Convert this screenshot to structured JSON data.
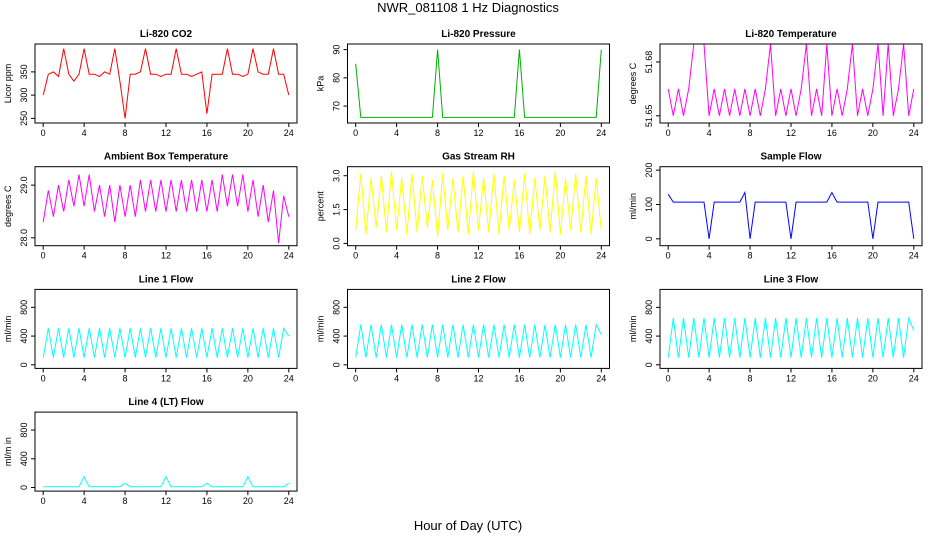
{
  "title": "NWR_081108  1 Hz Diagnostics",
  "xlabel": "Hour of Day (UTC)",
  "chart_data": [
    {
      "type": "line",
      "title": "Li-820 CO2",
      "ylabel": "Licor ppm",
      "xlim": [
        -0.8,
        24.8
      ],
      "xticks": [
        0,
        4,
        8,
        12,
        16,
        20,
        24
      ],
      "ylim": [
        240,
        410
      ],
      "yticks": [
        250,
        300,
        350
      ],
      "color": "#ff0000",
      "x": [
        0,
        0.5,
        1,
        1.5,
        2,
        2.5,
        3,
        3.5,
        4,
        4.5,
        5,
        5.5,
        6,
        6.5,
        7,
        7.5,
        8,
        8.5,
        9,
        9.5,
        10,
        10.5,
        11,
        11.5,
        12,
        12.5,
        13,
        13.5,
        14,
        14.5,
        15,
        15.5,
        16,
        16.5,
        17,
        17.5,
        18,
        18.5,
        19,
        19.5,
        20,
        20.5,
        21,
        21.5,
        22,
        22.5,
        23,
        23.5,
        24
      ],
      "values": [
        300,
        345,
        350,
        340,
        400,
        345,
        330,
        345,
        400,
        345,
        345,
        340,
        350,
        345,
        400,
        330,
        250,
        345,
        345,
        350,
        400,
        345,
        345,
        340,
        345,
        345,
        400,
        345,
        345,
        340,
        345,
        350,
        260,
        345,
        345,
        345,
        400,
        345,
        345,
        340,
        345,
        400,
        350,
        345,
        345,
        400,
        345,
        345,
        300
      ]
    },
    {
      "type": "line",
      "title": "Li-820 Pressure",
      "ylabel": "kPa",
      "xlim": [
        -0.8,
        24.8
      ],
      "xticks": [
        0,
        4,
        8,
        12,
        16,
        20,
        24
      ],
      "ylim": [
        64,
        92
      ],
      "yticks": [
        70,
        80,
        90
      ],
      "color": "#00b000",
      "x": [
        0,
        0.5,
        1,
        1.5,
        2,
        2.5,
        3,
        3.5,
        4,
        4.5,
        5,
        5.5,
        6,
        6.5,
        7,
        7.5,
        8,
        8.5,
        9,
        9.5,
        10,
        10.5,
        11,
        11.5,
        12,
        12.5,
        13,
        13.5,
        14,
        14.5,
        15,
        15.5,
        16,
        16.5,
        17,
        17.5,
        18,
        18.5,
        19,
        19.5,
        20,
        20.5,
        21,
        21.5,
        22,
        22.5,
        23,
        23.5,
        24
      ],
      "values": [
        85,
        66,
        66,
        66,
        66,
        66,
        66,
        66,
        66,
        66,
        66,
        66,
        66,
        66,
        66,
        66,
        90,
        66,
        66,
        66,
        66,
        66,
        66,
        66,
        66,
        66,
        66,
        66,
        66,
        66,
        66,
        66,
        90,
        66,
        66,
        66,
        66,
        66,
        66,
        66,
        66,
        66,
        66,
        66,
        66,
        66,
        66,
        66,
        90
      ]
    },
    {
      "type": "line",
      "title": "Li-820 Temperature",
      "ylabel": "degrees C",
      "xlim": [
        -0.8,
        24.8
      ],
      "xticks": [
        0,
        4,
        8,
        12,
        16,
        20,
        24
      ],
      "ylim": [
        51.646,
        51.69
      ],
      "yticks": [
        51.65,
        51.68
      ],
      "color": "#ff00ff",
      "x": [
        0,
        0.5,
        1,
        1.5,
        2,
        2.5,
        3,
        3.5,
        4,
        4.5,
        5,
        5.5,
        6,
        6.5,
        7,
        7.5,
        8,
        8.5,
        9,
        9.5,
        10,
        10.5,
        11,
        11.5,
        12,
        12.5,
        13,
        13.5,
        14,
        14.5,
        15,
        15.5,
        16,
        16.5,
        17,
        17.5,
        18,
        18.5,
        19,
        19.5,
        20,
        20.5,
        21,
        21.5,
        22,
        22.5,
        23,
        23.5,
        24
      ],
      "values": [
        51.665,
        51.65,
        51.665,
        51.65,
        51.665,
        51.69,
        51.69,
        51.69,
        51.65,
        51.665,
        51.65,
        51.665,
        51.65,
        51.665,
        51.65,
        51.665,
        51.65,
        51.665,
        51.65,
        51.665,
        51.69,
        51.65,
        51.665,
        51.65,
        51.665,
        51.65,
        51.665,
        51.69,
        51.65,
        51.665,
        51.65,
        51.69,
        51.65,
        51.665,
        51.65,
        51.665,
        51.69,
        51.65,
        51.665,
        51.65,
        51.665,
        51.69,
        51.65,
        51.69,
        51.65,
        51.665,
        51.69,
        51.65,
        51.665
      ]
    },
    {
      "type": "line",
      "title": "Ambient Box Temperature",
      "ylabel": "degrees C",
      "xlim": [
        -0.8,
        24.8
      ],
      "xticks": [
        0,
        4,
        8,
        12,
        16,
        20,
        24
      ],
      "ylim": [
        27.85,
        29.35
      ],
      "yticks": [
        {
          "value": 28,
          "label": "28.0"
        },
        {
          "value": 29,
          "label": "29.0"
        }
      ],
      "color": "#ff00ff",
      "x": [
        0,
        0.5,
        1,
        1.5,
        2,
        2.5,
        3,
        3.5,
        4,
        4.5,
        5,
        5.5,
        6,
        6.5,
        7,
        7.5,
        8,
        8.5,
        9,
        9.5,
        10,
        10.5,
        11,
        11.5,
        12,
        12.5,
        13,
        13.5,
        14,
        14.5,
        15,
        15.5,
        16,
        16.5,
        17,
        17.5,
        18,
        18.5,
        19,
        19.5,
        20,
        20.5,
        21,
        21.5,
        22,
        22.5,
        23,
        23.5,
        24
      ],
      "values": [
        28.3,
        28.9,
        28.4,
        29.0,
        28.5,
        29.1,
        28.6,
        29.2,
        28.6,
        29.2,
        28.5,
        29.0,
        28.4,
        29.0,
        28.3,
        29.0,
        28.4,
        29.0,
        28.4,
        29.1,
        28.5,
        29.1,
        28.5,
        29.1,
        28.5,
        29.1,
        28.5,
        29.1,
        28.5,
        29.1,
        28.5,
        29.1,
        28.5,
        29.1,
        28.5,
        29.2,
        28.6,
        29.2,
        28.6,
        29.2,
        28.5,
        29.1,
        28.4,
        29.0,
        28.3,
        28.9,
        27.9,
        28.8,
        28.4
      ]
    },
    {
      "type": "line",
      "title": "Gas Stream RH",
      "ylabel": "percent",
      "xlim": [
        -0.8,
        24.8
      ],
      "xticks": [
        0,
        4,
        8,
        12,
        16,
        20,
        24
      ],
      "ylim": [
        -0.1,
        3.4
      ],
      "yticks": [
        {
          "value": 0,
          "label": "0.0"
        },
        1.5,
        {
          "value": 3,
          "label": "3.0"
        }
      ],
      "color": "#ffff00",
      "x": [
        0,
        0.5,
        1,
        1.5,
        2,
        2.5,
        3,
        3.5,
        4,
        4.5,
        5,
        5.5,
        6,
        6.5,
        7,
        7.5,
        8,
        8.5,
        9,
        9.5,
        10,
        10.5,
        11,
        11.5,
        12,
        12.5,
        13,
        13.5,
        14,
        14.5,
        15,
        15.5,
        16,
        16.5,
        17,
        17.5,
        18,
        18.5,
        19,
        19.5,
        20,
        20.5,
        21,
        21.5,
        22,
        22.5,
        23,
        23.5,
        24
      ],
      "values": [
        0.6,
        3.1,
        0.4,
        2.9,
        0.7,
        3.0,
        0.5,
        3.2,
        0.6,
        2.9,
        0.4,
        3.1,
        0.5,
        3.0,
        0.7,
        2.8,
        0.3,
        3.1,
        0.6,
        2.9,
        0.5,
        3.0,
        0.4,
        3.2,
        0.6,
        2.9,
        0.5,
        3.1,
        0.4,
        3.0,
        0.6,
        2.8,
        0.5,
        3.1,
        0.4,
        2.9,
        0.6,
        3.0,
        0.5,
        3.2,
        0.4,
        2.9,
        0.6,
        3.1,
        0.5,
        3.0,
        0.4,
        2.9,
        0.6
      ]
    },
    {
      "type": "line",
      "title": "Sample Flow",
      "ylabel": "ml/min",
      "xlim": [
        -0.8,
        24.8
      ],
      "xticks": [
        0,
        4,
        8,
        12,
        16,
        20,
        24
      ],
      "ylim": [
        -20,
        210
      ],
      "yticks": [
        0,
        100,
        200
      ],
      "color": "#0000ff",
      "x": [
        0,
        0.5,
        1,
        1.5,
        2,
        2.5,
        3,
        3.5,
        4,
        4.5,
        5,
        5.5,
        6,
        6.5,
        7,
        7.5,
        8,
        8.5,
        9,
        9.5,
        10,
        10.5,
        11,
        11.5,
        12,
        12.5,
        13,
        13.5,
        14,
        14.5,
        15,
        15.5,
        16,
        16.5,
        17,
        17.5,
        18,
        18.5,
        19,
        19.5,
        20,
        20.5,
        21,
        21.5,
        22,
        22.5,
        23,
        23.5,
        24
      ],
      "values": [
        130,
        107,
        107,
        107,
        107,
        107,
        107,
        107,
        0,
        107,
        107,
        107,
        107,
        107,
        107,
        135,
        0,
        107,
        107,
        107,
        107,
        107,
        107,
        107,
        0,
        107,
        107,
        107,
        107,
        107,
        107,
        107,
        135,
        107,
        107,
        107,
        107,
        107,
        107,
        107,
        0,
        107,
        107,
        107,
        107,
        107,
        107,
        107,
        0
      ]
    },
    {
      "type": "line",
      "title": "Line 1 Flow",
      "ylabel": "ml/min",
      "xlim": [
        -0.8,
        24.8
      ],
      "xticks": [
        0,
        4,
        8,
        12,
        16,
        20,
        24
      ],
      "ylim": [
        -50,
        1050
      ],
      "yticks": [
        0,
        400,
        800
      ],
      "color": "#00ffff",
      "x": [
        0,
        0.5,
        1,
        1.5,
        2,
        2.5,
        3,
        3.5,
        4,
        4.5,
        5,
        5.5,
        6,
        6.5,
        7,
        7.5,
        8,
        8.5,
        9,
        9.5,
        10,
        10.5,
        11,
        11.5,
        12,
        12.5,
        13,
        13.5,
        14,
        14.5,
        15,
        15.5,
        16,
        16.5,
        17,
        17.5,
        18,
        18.5,
        19,
        19.5,
        20,
        20.5,
        21,
        21.5,
        22,
        22.5,
        23,
        23.5,
        24
      ],
      "values": [
        100,
        510,
        100,
        510,
        100,
        510,
        100,
        510,
        100,
        510,
        100,
        510,
        100,
        510,
        100,
        510,
        100,
        510,
        100,
        510,
        100,
        510,
        100,
        510,
        100,
        510,
        100,
        510,
        100,
        510,
        100,
        510,
        100,
        510,
        100,
        510,
        100,
        510,
        100,
        510,
        100,
        510,
        100,
        510,
        100,
        510,
        100,
        510,
        400
      ]
    },
    {
      "type": "line",
      "title": "Line 2 Flow",
      "ylabel": "ml/min",
      "xlim": [
        -0.8,
        24.8
      ],
      "xticks": [
        0,
        4,
        8,
        12,
        16,
        20,
        24
      ],
      "ylim": [
        -50,
        1050
      ],
      "yticks": [
        0,
        400,
        800
      ],
      "color": "#00ffff",
      "x": [
        0,
        0.5,
        1,
        1.5,
        2,
        2.5,
        3,
        3.5,
        4,
        4.5,
        5,
        5.5,
        6,
        6.5,
        7,
        7.5,
        8,
        8.5,
        9,
        9.5,
        10,
        10.5,
        11,
        11.5,
        12,
        12.5,
        13,
        13.5,
        14,
        14.5,
        15,
        15.5,
        16,
        16.5,
        17,
        17.5,
        18,
        18.5,
        19,
        19.5,
        20,
        20.5,
        21,
        21.5,
        22,
        22.5,
        23,
        23.5,
        24
      ],
      "values": [
        100,
        560,
        100,
        560,
        100,
        560,
        100,
        560,
        100,
        560,
        100,
        560,
        100,
        560,
        100,
        560,
        100,
        560,
        100,
        560,
        100,
        560,
        100,
        560,
        100,
        560,
        100,
        560,
        100,
        560,
        100,
        560,
        100,
        560,
        100,
        560,
        100,
        560,
        100,
        560,
        100,
        560,
        100,
        560,
        100,
        560,
        100,
        560,
        420
      ]
    },
    {
      "type": "line",
      "title": "Line 3 Flow",
      "ylabel": "ml/min",
      "xlim": [
        -0.8,
        24.8
      ],
      "xticks": [
        0,
        4,
        8,
        12,
        16,
        20,
        24
      ],
      "ylim": [
        -50,
        1050
      ],
      "yticks": [
        0,
        400,
        800
      ],
      "color": "#00ffff",
      "x": [
        0,
        0.5,
        1,
        1.5,
        2,
        2.5,
        3,
        3.5,
        4,
        4.5,
        5,
        5.5,
        6,
        6.5,
        7,
        7.5,
        8,
        8.5,
        9,
        9.5,
        10,
        10.5,
        11,
        11.5,
        12,
        12.5,
        13,
        13.5,
        14,
        14.5,
        15,
        15.5,
        16,
        16.5,
        17,
        17.5,
        18,
        18.5,
        19,
        19.5,
        20,
        20.5,
        21,
        21.5,
        22,
        22.5,
        23,
        23.5,
        24
      ],
      "values": [
        100,
        650,
        100,
        650,
        100,
        650,
        100,
        650,
        100,
        650,
        100,
        650,
        100,
        650,
        100,
        650,
        100,
        650,
        100,
        650,
        100,
        650,
        100,
        650,
        100,
        650,
        100,
        650,
        100,
        650,
        100,
        650,
        100,
        650,
        100,
        650,
        100,
        650,
        100,
        650,
        100,
        650,
        100,
        650,
        100,
        650,
        100,
        650,
        480
      ]
    },
    {
      "type": "line",
      "title": "Line 4 (LT) Flow",
      "ylabel": "ml/m in",
      "xlim": [
        -0.8,
        24.8
      ],
      "xticks": [
        0,
        4,
        8,
        12,
        16,
        20,
        24
      ],
      "ylim": [
        -50,
        1050
      ],
      "yticks": [
        0,
        400,
        800
      ],
      "color": "#00ffff",
      "x": [
        0,
        0.5,
        1,
        1.5,
        2,
        2.5,
        3,
        3.5,
        4,
        4.5,
        5,
        5.5,
        6,
        6.5,
        7,
        7.5,
        8,
        8.5,
        9,
        9.5,
        10,
        10.5,
        11,
        11.5,
        12,
        12.5,
        13,
        13.5,
        14,
        14.5,
        15,
        15.5,
        16,
        16.5,
        17,
        17.5,
        18,
        18.5,
        19,
        19.5,
        20,
        20.5,
        21,
        21.5,
        22,
        22.5,
        23,
        23.5,
        24
      ],
      "values": [
        10,
        10,
        10,
        10,
        10,
        10,
        10,
        10,
        150,
        10,
        10,
        10,
        10,
        10,
        10,
        10,
        60,
        10,
        10,
        10,
        10,
        10,
        10,
        10,
        150,
        10,
        10,
        10,
        10,
        10,
        10,
        10,
        60,
        10,
        10,
        10,
        10,
        10,
        10,
        10,
        150,
        10,
        10,
        10,
        10,
        10,
        10,
        10,
        60
      ]
    }
  ]
}
